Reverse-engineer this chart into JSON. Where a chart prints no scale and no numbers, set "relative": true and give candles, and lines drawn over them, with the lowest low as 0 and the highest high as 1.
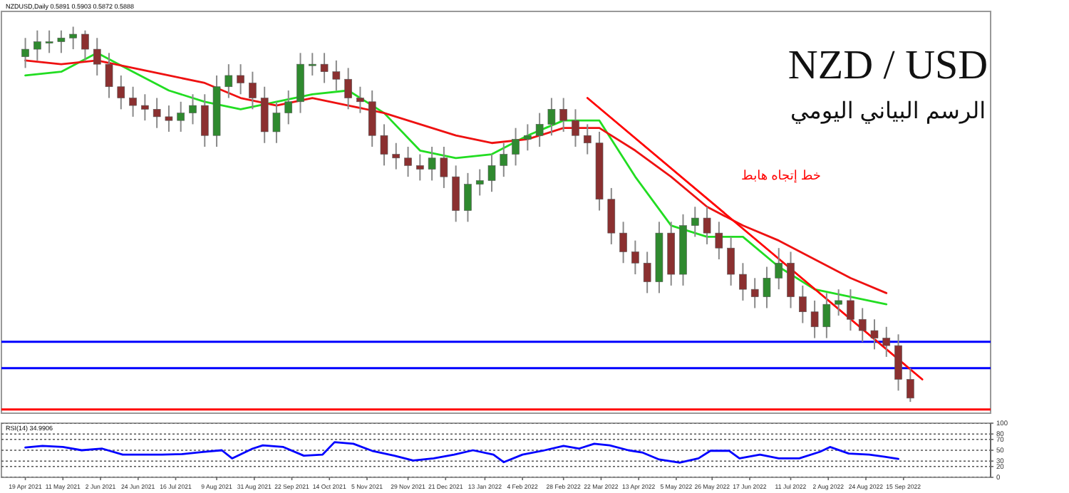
{
  "chart_data": [
    {
      "type": "candlestick",
      "relative": true,
      "title": "NZD / USD",
      "subtitle": "الرسم البياني اليومي",
      "annotations": [
        "NZDUSD,Daily 0.5891 0.5903 0.5872 0.5888",
        "خط إتجاه هابط"
      ],
      "x": [
        "2021-04-19",
        "2021-04-26",
        "2021-05-03",
        "2021-05-10",
        "2021-05-17",
        "2021-05-24",
        "2021-05-31",
        "2021-06-07",
        "2021-06-14",
        "2021-06-21",
        "2021-06-28",
        "2021-07-05",
        "2021-07-12",
        "2021-07-19",
        "2021-07-26",
        "2021-08-02",
        "2021-08-09",
        "2021-08-16",
        "2021-08-23",
        "2021-08-30",
        "2021-09-06",
        "2021-09-13",
        "2021-09-20",
        "2021-09-27",
        "2021-10-04",
        "2021-10-11",
        "2021-10-18",
        "2021-10-25",
        "2021-11-01",
        "2021-11-08",
        "2021-11-15",
        "2021-11-22",
        "2021-11-29",
        "2021-12-06",
        "2021-12-13",
        "2021-12-20",
        "2021-12-27",
        "2022-01-03",
        "2022-01-10",
        "2022-01-17",
        "2022-01-24",
        "2022-01-31",
        "2022-02-07",
        "2022-02-14",
        "2022-02-21",
        "2022-02-28",
        "2022-03-07",
        "2022-03-14",
        "2022-03-21",
        "2022-03-28",
        "2022-04-04",
        "2022-04-11",
        "2022-04-18",
        "2022-04-25",
        "2022-05-02",
        "2022-05-09",
        "2022-05-16",
        "2022-05-23",
        "2022-05-30",
        "2022-06-06",
        "2022-06-13",
        "2022-06-20",
        "2022-06-27",
        "2022-07-04",
        "2022-07-11",
        "2022-07-18",
        "2022-07-25",
        "2022-08-01",
        "2022-08-08",
        "2022-08-15",
        "2022-08-22",
        "2022-08-29",
        "2022-09-05",
        "2022-09-12",
        "2022-09-19"
      ],
      "ohlc": [
        [
          0.92,
          0.97,
          0.89,
          0.94
        ],
        [
          0.94,
          0.99,
          0.91,
          0.96
        ],
        [
          0.96,
          0.99,
          0.93,
          0.96
        ],
        [
          0.96,
          0.99,
          0.93,
          0.97
        ],
        [
          0.97,
          1.0,
          0.94,
          0.98
        ],
        [
          0.98,
          0.99,
          0.91,
          0.94
        ],
        [
          0.94,
          0.97,
          0.87,
          0.9
        ],
        [
          0.9,
          0.93,
          0.81,
          0.84
        ],
        [
          0.84,
          0.87,
          0.78,
          0.81
        ],
        [
          0.81,
          0.84,
          0.76,
          0.79
        ],
        [
          0.79,
          0.82,
          0.75,
          0.78
        ],
        [
          0.78,
          0.81,
          0.73,
          0.76
        ],
        [
          0.76,
          0.79,
          0.72,
          0.75
        ],
        [
          0.75,
          0.8,
          0.72,
          0.77
        ],
        [
          0.77,
          0.82,
          0.74,
          0.79
        ],
        [
          0.79,
          0.82,
          0.68,
          0.71
        ],
        [
          0.71,
          0.87,
          0.68,
          0.84
        ],
        [
          0.84,
          0.9,
          0.81,
          0.87
        ],
        [
          0.87,
          0.9,
          0.82,
          0.85
        ],
        [
          0.85,
          0.88,
          0.78,
          0.81
        ],
        [
          0.81,
          0.84,
          0.69,
          0.72
        ],
        [
          0.72,
          0.8,
          0.69,
          0.77
        ],
        [
          0.77,
          0.83,
          0.74,
          0.8
        ],
        [
          0.8,
          0.93,
          0.77,
          0.9
        ],
        [
          0.9,
          0.93,
          0.87,
          0.9
        ],
        [
          0.9,
          0.93,
          0.85,
          0.88
        ],
        [
          0.88,
          0.91,
          0.83,
          0.86
        ],
        [
          0.86,
          0.89,
          0.78,
          0.81
        ],
        [
          0.81,
          0.84,
          0.77,
          0.8
        ],
        [
          0.8,
          0.83,
          0.68,
          0.71
        ],
        [
          0.71,
          0.74,
          0.63,
          0.66
        ],
        [
          0.66,
          0.69,
          0.62,
          0.65
        ],
        [
          0.65,
          0.68,
          0.6,
          0.63
        ],
        [
          0.63,
          0.66,
          0.59,
          0.62
        ],
        [
          0.62,
          0.68,
          0.59,
          0.65
        ],
        [
          0.65,
          0.68,
          0.57,
          0.6
        ],
        [
          0.6,
          0.63,
          0.48,
          0.51
        ],
        [
          0.51,
          0.61,
          0.48,
          0.58
        ],
        [
          0.58,
          0.62,
          0.55,
          0.59
        ],
        [
          0.59,
          0.66,
          0.56,
          0.63
        ],
        [
          0.63,
          0.69,
          0.6,
          0.66
        ],
        [
          0.66,
          0.73,
          0.63,
          0.7
        ],
        [
          0.7,
          0.74,
          0.67,
          0.71
        ],
        [
          0.71,
          0.77,
          0.68,
          0.74
        ],
        [
          0.74,
          0.81,
          0.71,
          0.78
        ],
        [
          0.78,
          0.81,
          0.72,
          0.75
        ],
        [
          0.75,
          0.78,
          0.68,
          0.71
        ],
        [
          0.71,
          0.74,
          0.66,
          0.69
        ],
        [
          0.69,
          0.72,
          0.51,
          0.54
        ],
        [
          0.54,
          0.57,
          0.42,
          0.45
        ],
        [
          0.45,
          0.48,
          0.37,
          0.4
        ],
        [
          0.4,
          0.43,
          0.34,
          0.37
        ],
        [
          0.37,
          0.4,
          0.29,
          0.32
        ],
        [
          0.32,
          0.48,
          0.29,
          0.45
        ],
        [
          0.45,
          0.48,
          0.31,
          0.34
        ],
        [
          0.34,
          0.5,
          0.31,
          0.47
        ],
        [
          0.47,
          0.52,
          0.44,
          0.49
        ],
        [
          0.49,
          0.52,
          0.42,
          0.45
        ],
        [
          0.45,
          0.48,
          0.38,
          0.41
        ],
        [
          0.41,
          0.44,
          0.31,
          0.34
        ],
        [
          0.34,
          0.37,
          0.27,
          0.3
        ],
        [
          0.3,
          0.33,
          0.25,
          0.28
        ],
        [
          0.28,
          0.36,
          0.25,
          0.33
        ],
        [
          0.33,
          0.41,
          0.3,
          0.37
        ],
        [
          0.37,
          0.4,
          0.25,
          0.28
        ],
        [
          0.28,
          0.31,
          0.21,
          0.24
        ],
        [
          0.24,
          0.27,
          0.17,
          0.2
        ],
        [
          0.2,
          0.29,
          0.17,
          0.26
        ],
        [
          0.26,
          0.3,
          0.23,
          0.27
        ],
        [
          0.27,
          0.3,
          0.19,
          0.22
        ],
        [
          0.22,
          0.25,
          0.16,
          0.19
        ],
        [
          0.19,
          0.22,
          0.14,
          0.17
        ],
        [
          0.17,
          0.2,
          0.12,
          0.15
        ],
        [
          0.15,
          0.18,
          0.03,
          0.06
        ],
        [
          0.06,
          0.09,
          0.0,
          0.01
        ]
      ],
      "series": [
        {
          "type": "line",
          "color": "#22dd22",
          "x": [
            "2021-04-19",
            "2021-05-10",
            "2021-05-31",
            "2021-06-21",
            "2021-07-12",
            "2021-08-02",
            "2021-08-23",
            "2021-09-13",
            "2021-10-04",
            "2021-10-25",
            "2021-11-15",
            "2021-12-06",
            "2021-12-27",
            "2022-01-17",
            "2022-02-07",
            "2022-02-28",
            "2022-03-21",
            "2022-04-11",
            "2022-05-02",
            "2022-05-23",
            "2022-06-13",
            "2022-07-04",
            "2022-07-25",
            "2022-08-15",
            "2022-09-05"
          ],
          "values": [
            0.87,
            0.88,
            0.93,
            0.88,
            0.83,
            0.8,
            0.78,
            0.8,
            0.82,
            0.83,
            0.77,
            0.67,
            0.65,
            0.66,
            0.71,
            0.75,
            0.75,
            0.6,
            0.47,
            0.44,
            0.44,
            0.36,
            0.3,
            0.28,
            0.26
          ]
        },
        {
          "type": "line",
          "color": "#ee1111",
          "x": [
            "2021-04-19",
            "2021-05-10",
            "2021-05-31",
            "2021-06-21",
            "2021-07-12",
            "2021-08-02",
            "2021-08-23",
            "2021-09-13",
            "2021-10-04",
            "2021-10-25",
            "2021-11-15",
            "2021-12-06",
            "2021-12-27",
            "2022-01-17",
            "2022-02-07",
            "2022-02-28",
            "2022-03-21",
            "2022-04-11",
            "2022-05-02",
            "2022-05-23",
            "2022-06-13",
            "2022-07-04",
            "2022-07-25",
            "2022-08-15",
            "2022-09-05"
          ],
          "values": [
            0.91,
            0.9,
            0.91,
            0.89,
            0.87,
            0.85,
            0.81,
            0.79,
            0.81,
            0.79,
            0.77,
            0.74,
            0.71,
            0.69,
            0.7,
            0.73,
            0.73,
            0.67,
            0.6,
            0.52,
            0.47,
            0.43,
            0.38,
            0.33,
            0.29
          ]
        },
        {
          "type": "line",
          "color": "#ff0000",
          "x": [
            "2022-03-14",
            "2022-09-26"
          ],
          "values": [
            0.81,
            0.06
          ]
        }
      ],
      "ref_lines": [
        {
          "axis": "y",
          "value": 0.16,
          "color": "#0000ff"
        },
        {
          "axis": "y",
          "value": 0.09,
          "color": "#0000ff"
        },
        {
          "axis": "y",
          "value": -0.02,
          "color": "#ff0000"
        }
      ],
      "xlim": [
        "2021-04-05",
        "2022-11-05"
      ]
    },
    {
      "type": "line",
      "annotations": [
        "RSI(14) 34.9906"
      ],
      "series": [
        {
          "color": "#0000ff",
          "x": [
            "2021-04-19",
            "2021-04-29",
            "2021-05-11",
            "2021-05-22",
            "2021-06-03",
            "2021-06-15",
            "2021-06-27",
            "2021-07-08",
            "2021-07-20",
            "2021-08-01",
            "2021-08-12",
            "2021-08-18",
            "2021-08-30",
            "2021-09-05",
            "2021-09-17",
            "2021-09-29",
            "2021-10-10",
            "2021-10-17",
            "2021-10-28",
            "2021-11-08",
            "2021-11-21",
            "2021-12-02",
            "2021-12-14",
            "2021-12-26",
            "2022-01-06",
            "2022-01-18",
            "2022-01-24",
            "2022-02-04",
            "2022-02-17",
            "2022-02-28",
            "2022-03-09",
            "2022-03-18",
            "2022-03-27",
            "2022-04-07",
            "2022-04-15",
            "2022-04-25",
            "2022-05-07",
            "2022-05-18",
            "2022-05-25",
            "2022-06-05",
            "2022-06-11",
            "2022-06-23",
            "2022-07-04",
            "2022-07-16",
            "2022-07-28",
            "2022-08-03",
            "2022-08-14",
            "2022-08-26",
            "2022-09-04",
            "2022-09-12"
          ],
          "values": [
            55,
            58,
            56,
            50,
            53,
            42,
            42,
            42,
            43,
            47,
            50,
            35,
            53,
            59,
            56,
            40,
            42,
            65,
            62,
            49,
            40,
            31,
            35,
            42,
            50,
            42,
            28,
            42,
            50,
            58,
            53,
            62,
            59,
            50,
            46,
            33,
            27,
            35,
            49,
            49,
            35,
            42,
            35,
            35,
            47,
            56,
            44,
            42,
            38,
            34
          ]
        }
      ],
      "xlim": [
        "2021-04-05",
        "2022-11-05"
      ],
      "xticks": [
        {
          "value": "2021-04-19",
          "label": "19 Apr 2021"
        },
        {
          "value": "2021-05-11",
          "label": "11 May 2021"
        },
        {
          "value": "2021-06-02",
          "label": "2 Jun 2021"
        },
        {
          "value": "2021-06-24",
          "label": "24 Jun 2021"
        },
        {
          "value": "2021-07-16",
          "label": "16 Jul 2021"
        },
        {
          "value": "2021-08-09",
          "label": "9 Aug 2021"
        },
        {
          "value": "2021-08-31",
          "label": "31 Aug 2021"
        },
        {
          "value": "2021-09-22",
          "label": "22 Sep 2021"
        },
        {
          "value": "2021-10-14",
          "label": "14 Oct 2021"
        },
        {
          "value": "2021-11-05",
          "label": "5 Nov 2021"
        },
        {
          "value": "2021-11-29",
          "label": "29 Nov 2021"
        },
        {
          "value": "2021-12-21",
          "label": "21 Dec 2021"
        },
        {
          "value": "2022-01-13",
          "label": "13 Jan 2022"
        },
        {
          "value": "2022-02-04",
          "label": "4 Feb 2022"
        },
        {
          "value": "2022-02-28",
          "label": "28 Feb 2022"
        },
        {
          "value": "2022-03-22",
          "label": "22 Mar 2022"
        },
        {
          "value": "2022-04-13",
          "label": "13 Apr 2022"
        },
        {
          "value": "2022-05-05",
          "label": "5 May 2022"
        },
        {
          "value": "2022-05-26",
          "label": "26 May 2022"
        },
        {
          "value": "2022-06-17",
          "label": "17 Jun 2022"
        },
        {
          "value": "2022-07-11",
          "label": "11 Jul 2022"
        },
        {
          "value": "2022-08-02",
          "label": "2 Aug 2022"
        },
        {
          "value": "2022-08-24",
          "label": "24 Aug 2022"
        },
        {
          "value": "2022-09-15",
          "label": "15 Sep 2022"
        }
      ],
      "ylim": [
        0,
        100
      ],
      "yticks": [
        0,
        20,
        30,
        50,
        70,
        80,
        100
      ],
      "grid": "y"
    }
  ]
}
